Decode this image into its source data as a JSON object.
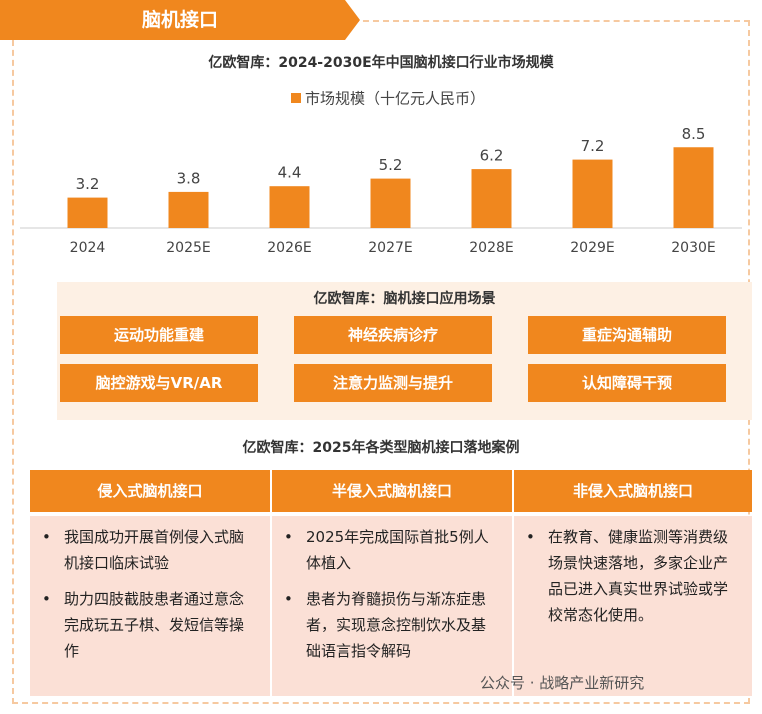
{
  "header": {
    "title": "脑机接口"
  },
  "chart_data": {
    "type": "bar",
    "title": "亿欧智库：2024-2030E年中国脑机接口行业市场规模",
    "categories": [
      "2024",
      "2025E",
      "2026E",
      "2027E",
      "2028E",
      "2029E",
      "2030E"
    ],
    "series": [
      {
        "name": "市场规模（十亿元人民币）",
        "color": "#f0871e",
        "values": [
          3.2,
          3.8,
          4.4,
          5.2,
          6.2,
          7.2,
          8.5
        ]
      }
    ],
    "ylim": [
      0,
      9
    ]
  },
  "scenarios": {
    "title": "亿欧智库：脑机接口应用场景",
    "items": [
      "运动功能重建",
      "神经疾病诊疗",
      "重症沟通辅助",
      "脑控游戏与VR/AR",
      "注意力监测与提升",
      "认知障碍干预"
    ]
  },
  "cases": {
    "title": "亿欧智库：2025年各类型脑机接口落地案例",
    "columns": [
      {
        "header": "侵入式脑机接口",
        "items": [
          "我国成功开展首例侵入式脑机接口临床试验",
          "助力四肢截肢患者通过意念完成玩五子棋、发短信等操作"
        ]
      },
      {
        "header": "半侵入式脑机接口",
        "items": [
          "2025年完成国际首批5例人体植入",
          "患者为脊髓损伤与渐冻症患者，实现意念控制饮水及基础语言指令解码"
        ]
      },
      {
        "header": "非侵入式脑机接口",
        "items": [
          "在教育、健康监测等消费级场景快速落地，多家企业产品已进入真实世界试验或学校常态化使用。"
        ]
      }
    ]
  },
  "footer": {
    "text": "公众号 · 战略产业新研究"
  }
}
